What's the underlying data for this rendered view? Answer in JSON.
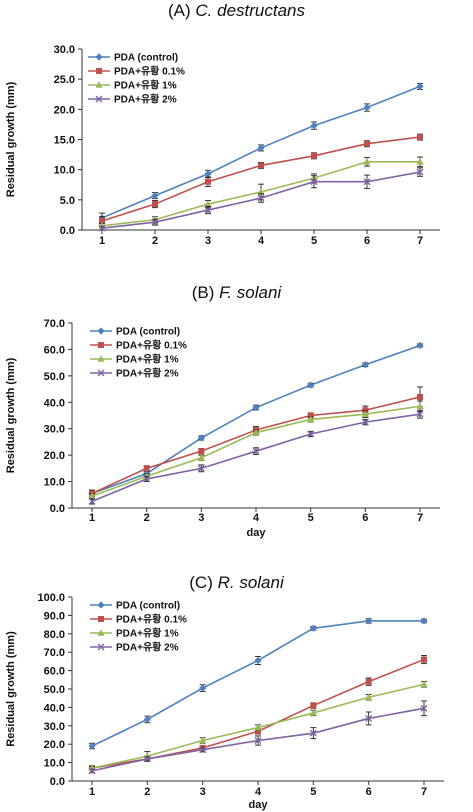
{
  "chart_data": [
    {
      "type": "line",
      "panel_label": "(A) ",
      "title_italic": "C. destructans",
      "xlabel": "",
      "ylabel": "Residual growth (mm)",
      "x": [
        1,
        2,
        3,
        4,
        5,
        6,
        7
      ],
      "ylim": [
        0,
        30
      ],
      "yticks": [
        "0.0",
        "5.0",
        "10.0",
        "15.0",
        "20.0",
        "25.0",
        "30.0"
      ],
      "legend_position": "top-left",
      "series": [
        {
          "name": "PDA (control)",
          "color": "#4F81BD",
          "marker": "diamond",
          "values": [
            2.0,
            5.7,
            9.3,
            13.6,
            17.3,
            20.3,
            23.8
          ],
          "errors": [
            0.8,
            0.5,
            0.6,
            0.5,
            0.6,
            0.6,
            0.5
          ]
        },
        {
          "name": "PDA+유황 0.1%",
          "color": "#C0504D",
          "marker": "square",
          "values": [
            1.5,
            4.3,
            8.0,
            10.7,
            12.3,
            14.3,
            15.4
          ],
          "errors": [
            0.7,
            0.6,
            0.8,
            0.5,
            0.5,
            0.5,
            0.5
          ]
        },
        {
          "name": "PDA+유황 1%",
          "color": "#9BBB59",
          "marker": "triangle",
          "values": [
            0.7,
            1.7,
            4.3,
            6.3,
            8.6,
            11.3,
            11.3
          ],
          "errors": [
            0.4,
            0.5,
            0.6,
            1.3,
            0.7,
            0.7,
            0.8
          ]
        },
        {
          "name": "PDA+유황 2%",
          "color": "#8064A2",
          "marker": "x",
          "values": [
            0.3,
            1.3,
            3.3,
            5.3,
            8.0,
            8.0,
            9.6
          ],
          "errors": [
            0.3,
            0.5,
            0.6,
            0.7,
            1.0,
            1.1,
            0.7
          ]
        }
      ]
    },
    {
      "type": "line",
      "panel_label": "(B) ",
      "title_italic": "F. solani",
      "xlabel": "day",
      "ylabel": "Residual growth (mm)",
      "x": [
        1,
        2,
        3,
        4,
        5,
        6,
        7
      ],
      "ylim": [
        0,
        70
      ],
      "yticks": [
        "0.0",
        "10.0",
        "20.0",
        "30.0",
        "40.0",
        "50.0",
        "60.0",
        "70.0"
      ],
      "legend_position": "top-left",
      "series": [
        {
          "name": "PDA (control)",
          "color": "#4F81BD",
          "marker": "diamond",
          "values": [
            5.5,
            13.0,
            26.5,
            38.0,
            46.5,
            54.2,
            61.5
          ],
          "errors": [
            1.0,
            0.8,
            0.8,
            0.9,
            0.7,
            0.7,
            0.6
          ]
        },
        {
          "name": "PDA+유황 0.1%",
          "color": "#C0504D",
          "marker": "square",
          "values": [
            5.5,
            15.0,
            21.5,
            29.5,
            35.0,
            37.0,
            42.0
          ],
          "errors": [
            1.3,
            1.0,
            1.0,
            1.3,
            1.0,
            1.6,
            3.8
          ]
        },
        {
          "name": "PDA+유황 1%",
          "color": "#9BBB59",
          "marker": "triangle",
          "values": [
            4.5,
            12.0,
            19.0,
            28.5,
            33.5,
            35.5,
            38.5
          ],
          "errors": [
            1.0,
            1.0,
            1.0,
            1.0,
            1.0,
            1.3,
            2.0
          ]
        },
        {
          "name": "PDA+유황 2%",
          "color": "#8064A2",
          "marker": "x",
          "values": [
            2.5,
            11.0,
            15.0,
            21.5,
            28.0,
            32.5,
            35.5
          ],
          "errors": [
            1.0,
            1.0,
            1.3,
            1.3,
            1.0,
            1.0,
            1.5
          ]
        }
      ]
    },
    {
      "type": "line",
      "panel_label": "(C) ",
      "title_italic": "R. solani",
      "xlabel": "day",
      "ylabel": "Residual growth (mm)",
      "x": [
        1,
        2,
        3,
        4,
        5,
        6,
        7
      ],
      "ylim": [
        0,
        100
      ],
      "yticks": [
        "0.0",
        "10.0",
        "20.0",
        "30.0",
        "40.0",
        "50.0",
        "60.0",
        "70.0",
        "80.0",
        "90.0",
        "100.0"
      ],
      "legend_position": "top-left",
      "series": [
        {
          "name": "PDA (control)",
          "color": "#4F81BD",
          "marker": "diamond",
          "values": [
            19.0,
            33.5,
            50.5,
            65.5,
            83.0,
            87.0,
            87.0
          ],
          "errors": [
            1.5,
            1.8,
            1.8,
            2.2,
            1.0,
            1.2,
            1.0
          ]
        },
        {
          "name": "PDA+유황 0.1%",
          "color": "#C0504D",
          "marker": "square",
          "values": [
            7.0,
            12.0,
            18.0,
            27.0,
            41.0,
            54.0,
            66.0
          ],
          "errors": [
            1.0,
            1.2,
            1.2,
            1.5,
            1.5,
            2.0,
            2.2
          ]
        },
        {
          "name": "PDA+유황 1%",
          "color": "#9BBB59",
          "marker": "triangle",
          "values": [
            7.0,
            13.5,
            22.0,
            29.0,
            37.0,
            45.5,
            52.5
          ],
          "errors": [
            1.0,
            2.5,
            1.5,
            1.5,
            1.5,
            1.5,
            1.5
          ]
        },
        {
          "name": "PDA+유황 2%",
          "color": "#8064A2",
          "marker": "x",
          "values": [
            5.5,
            12.0,
            17.0,
            22.0,
            26.0,
            34.0,
            39.5
          ],
          "errors": [
            1.0,
            1.2,
            1.2,
            2.5,
            3.0,
            3.5,
            4.0
          ]
        }
      ]
    }
  ]
}
